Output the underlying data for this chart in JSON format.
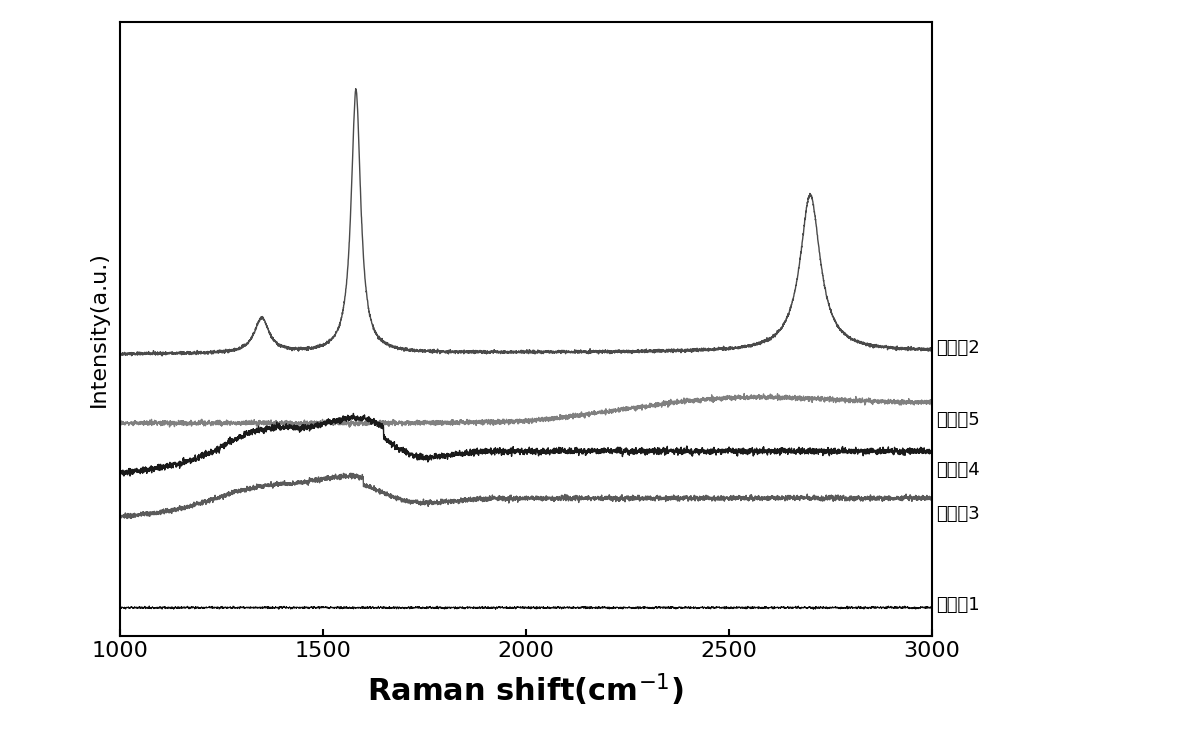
{
  "xlabel": "Raman shift(cm$^{-1}$)",
  "ylabel": "Intensity(a.u.)",
  "xlim": [
    1000,
    3000
  ],
  "ylim": [
    -0.3,
    9.5
  ],
  "x_ticks": [
    1000,
    1500,
    2000,
    2500,
    3000
  ],
  "background_color": "#ffffff",
  "series_labels": [
    "实施例2",
    "实施例5",
    "实施例4",
    "实施例3",
    "实施例1"
  ],
  "series_colors": [
    "#4a4a4a",
    "#808080",
    "#1a1a1a",
    "#5a5a5a",
    "#0a0a0a"
  ],
  "series_lw": [
    1.0,
    1.0,
    1.0,
    1.0,
    0.7
  ],
  "noise_scale": [
    0.012,
    0.018,
    0.022,
    0.018,
    0.006
  ],
  "base_offsets": [
    4.2,
    3.1,
    2.3,
    1.6,
    0.15
  ],
  "xlabel_fontsize": 22,
  "ylabel_fontsize": 16,
  "tick_fontsize": 16,
  "label_fontsize": 13
}
